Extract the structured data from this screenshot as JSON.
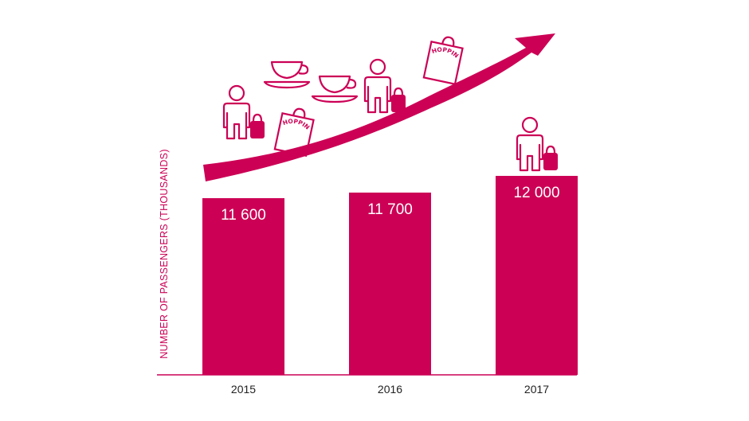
{
  "colors": {
    "accent": "#cc0055",
    "text": "#222222",
    "bar_label": "#ffffff"
  },
  "icons": [
    "person-with-luggage-icon",
    "coffee-cup-icon",
    "shopping-bag-icon",
    "growth-arrow-icon"
  ],
  "shopping_text": "SHOPPING",
  "chart_data": {
    "type": "bar",
    "categories": [
      "2015",
      "2016",
      "2017"
    ],
    "values": [
      11600,
      11700,
      12000
    ],
    "value_labels": [
      "11 600",
      "11 700",
      "12 000"
    ],
    "title": "",
    "xlabel": "",
    "ylabel": "NUMBER OF PASSENGERS (THOUSANDS)",
    "ylim": [
      0,
      12000
    ],
    "grid": false,
    "legend": "none"
  }
}
